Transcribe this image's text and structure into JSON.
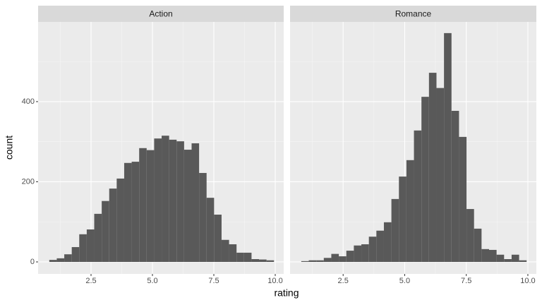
{
  "chart_data": [
    {
      "type": "histogram",
      "title": "Action",
      "x_label": "rating",
      "y_label": "count",
      "color": "#595959",
      "grid": true,
      "bins": [
        0.8,
        1.105,
        1.41,
        1.715,
        2.02,
        2.325,
        2.63,
        2.935,
        3.24,
        3.545,
        3.85,
        4.155,
        4.46,
        4.765,
        5.07,
        5.375,
        5.68,
        5.985,
        6.29,
        6.595,
        6.9,
        7.205,
        7.51,
        7.815,
        8.12,
        8.425,
        8.73,
        9.035,
        9.34,
        9.645,
        9.95
      ],
      "values": [
        5,
        9,
        19,
        37,
        69,
        81,
        120,
        152,
        183,
        208,
        247,
        250,
        284,
        279,
        308,
        315,
        305,
        301,
        280,
        296,
        222,
        160,
        118,
        55,
        44,
        23,
        23,
        7,
        6,
        4
      ],
      "xlim": [
        0.345,
        10.345
      ],
      "ylim": [
        -30,
        599
      ],
      "xticks": [
        2.5,
        {
          "value": 5,
          "label": "5.0"
        },
        7.5,
        {
          "value": 10,
          "label": "10.0"
        }
      ],
      "yticks": [
        0,
        200,
        400
      ]
    },
    {
      "type": "histogram",
      "title": "Romance",
      "color": "#595959",
      "grid": true,
      "bins": [
        0.8,
        1.105,
        1.41,
        1.715,
        2.02,
        2.325,
        2.63,
        2.935,
        3.24,
        3.545,
        3.85,
        4.155,
        4.46,
        4.765,
        5.07,
        5.375,
        5.68,
        5.985,
        6.29,
        6.595,
        6.9,
        7.205,
        7.51,
        7.815,
        8.12,
        8.425,
        8.73,
        9.035,
        9.34,
        9.645,
        9.95
      ],
      "values": [
        2,
        4,
        4,
        10,
        20,
        14,
        28,
        41,
        44,
        63,
        78,
        99,
        157,
        213,
        254,
        328,
        412,
        472,
        434,
        571,
        377,
        312,
        132,
        83,
        32,
        30,
        18,
        7,
        18,
        4
      ],
      "xlim": [
        0.345,
        10.345
      ],
      "ylim": [
        -30,
        599
      ],
      "xticks": [
        2.5,
        {
          "value": 5,
          "label": "5.0"
        },
        7.5,
        {
          "value": 10,
          "label": "10.0"
        }
      ],
      "yticks": [
        0,
        200,
        400
      ]
    }
  ]
}
